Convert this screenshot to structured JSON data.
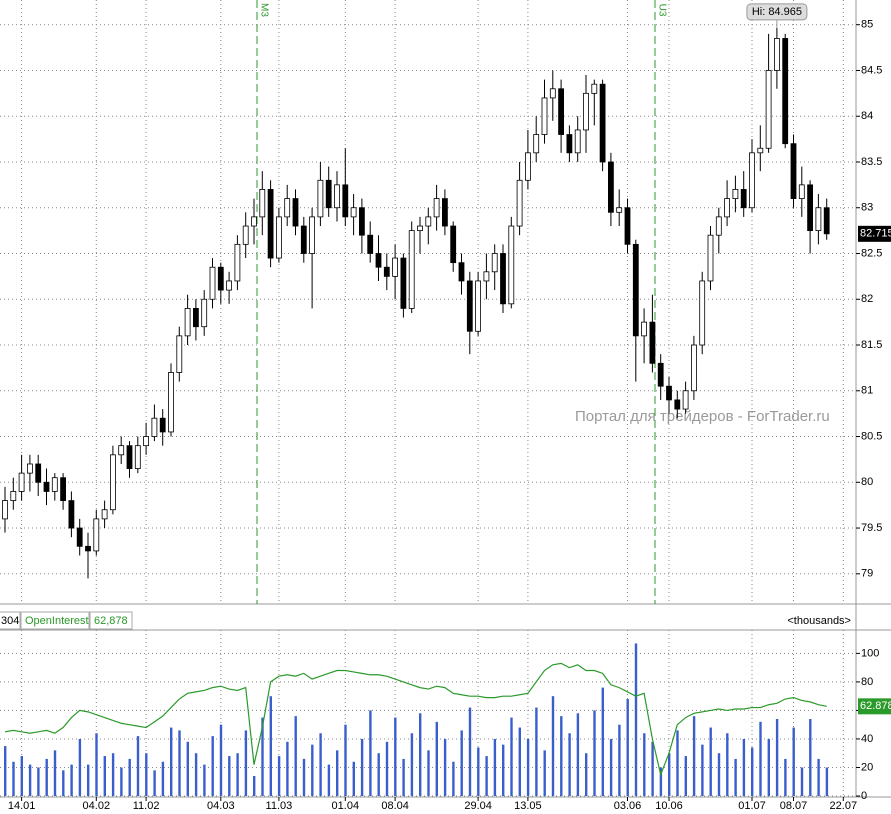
{
  "chart_data": {
    "type": "candlestick",
    "categories": [
      null,
      null,
      "14.01",
      null,
      null,
      null,
      null,
      null,
      null,
      null,
      null,
      "04.02",
      null,
      null,
      null,
      null,
      null,
      "11.02",
      null,
      null,
      null,
      null,
      null,
      null,
      null,
      null,
      "04.03",
      null,
      null,
      null,
      null,
      null,
      null,
      "11.03",
      null,
      null,
      null,
      null,
      null,
      null,
      null,
      "01.04",
      null,
      null,
      null,
      null,
      null,
      "08.04",
      null,
      null,
      null,
      null,
      null,
      null,
      null,
      null,
      null,
      "29.04",
      null,
      null,
      null,
      null,
      null,
      "13.05",
      null,
      null,
      null,
      null,
      null,
      null,
      null,
      null,
      null,
      null,
      null,
      "03.06",
      null,
      null,
      null,
      null,
      "10.06",
      null,
      null,
      null,
      null,
      null,
      null,
      null,
      null,
      null,
      "01.07",
      null,
      null,
      null,
      null,
      "08.07",
      null,
      null,
      null,
      null,
      null,
      "22.07"
    ],
    "candles": [
      [
        79.6,
        79.95,
        79.45,
        79.8
      ],
      [
        79.8,
        80.05,
        79.7,
        79.9
      ],
      [
        79.9,
        80.3,
        79.8,
        80.1
      ],
      [
        80.1,
        80.3,
        79.9,
        80.2
      ],
      [
        80.2,
        80.3,
        79.85,
        80.0
      ],
      [
        80.0,
        80.15,
        79.75,
        79.9
      ],
      [
        79.9,
        80.1,
        79.8,
        80.05
      ],
      [
        80.05,
        80.1,
        79.7,
        79.8
      ],
      [
        79.8,
        79.9,
        79.4,
        79.5
      ],
      [
        79.5,
        79.6,
        79.2,
        79.3
      ],
      [
        79.3,
        79.45,
        78.95,
        79.25
      ],
      [
        79.25,
        79.7,
        79.2,
        79.6
      ],
      [
        79.6,
        79.8,
        79.5,
        79.7
      ],
      [
        79.7,
        80.4,
        79.65,
        80.3
      ],
      [
        80.3,
        80.5,
        80.2,
        80.4
      ],
      [
        80.4,
        80.45,
        80.05,
        80.15
      ],
      [
        80.15,
        80.5,
        80.1,
        80.4
      ],
      [
        80.4,
        80.65,
        80.3,
        80.5
      ],
      [
        80.5,
        80.85,
        80.45,
        80.7
      ],
      [
        80.7,
        80.8,
        80.4,
        80.55
      ],
      [
        80.55,
        81.3,
        80.5,
        81.2
      ],
      [
        81.2,
        81.7,
        81.1,
        81.6
      ],
      [
        81.6,
        82.05,
        81.5,
        81.9
      ],
      [
        81.9,
        82.0,
        81.55,
        81.7
      ],
      [
        81.7,
        82.1,
        81.6,
        82.0
      ],
      [
        82.0,
        82.45,
        81.9,
        82.35
      ],
      [
        82.35,
        82.4,
        81.95,
        82.1
      ],
      [
        82.1,
        82.3,
        81.95,
        82.2
      ],
      [
        82.2,
        82.7,
        82.1,
        82.6
      ],
      [
        82.6,
        82.95,
        82.45,
        82.8
      ],
      [
        82.8,
        83.1,
        82.6,
        82.9
      ],
      [
        82.9,
        83.4,
        82.7,
        83.2
      ],
      [
        83.2,
        83.3,
        82.35,
        82.45
      ],
      [
        82.45,
        83.0,
        82.4,
        82.9
      ],
      [
        82.9,
        83.25,
        82.8,
        83.1
      ],
      [
        83.1,
        83.2,
        82.7,
        82.8
      ],
      [
        82.8,
        82.9,
        82.4,
        82.5
      ],
      [
        82.5,
        83.0,
        81.9,
        82.9
      ],
      [
        82.9,
        83.5,
        82.8,
        83.3
      ],
      [
        83.3,
        83.45,
        82.9,
        83.0
      ],
      [
        83.0,
        83.4,
        82.85,
        83.25
      ],
      [
        83.25,
        83.65,
        82.8,
        82.9
      ],
      [
        82.9,
        83.15,
        82.7,
        83.0
      ],
      [
        83.0,
        83.1,
        82.5,
        82.7
      ],
      [
        82.7,
        82.85,
        82.4,
        82.5
      ],
      [
        82.5,
        82.7,
        82.2,
        82.35
      ],
      [
        82.35,
        82.5,
        82.1,
        82.25
      ],
      [
        82.25,
        82.6,
        82.0,
        82.45
      ],
      [
        82.45,
        82.5,
        81.8,
        81.9
      ],
      [
        81.9,
        82.85,
        81.85,
        82.75
      ],
      [
        82.75,
        82.9,
        82.5,
        82.8
      ],
      [
        82.8,
        83.0,
        82.6,
        82.9
      ],
      [
        82.9,
        83.25,
        82.75,
        83.1
      ],
      [
        83.1,
        83.2,
        82.7,
        82.8
      ],
      [
        82.8,
        82.85,
        82.3,
        82.4
      ],
      [
        82.4,
        82.5,
        82.05,
        82.2
      ],
      [
        82.2,
        82.3,
        81.4,
        81.65
      ],
      [
        81.65,
        82.3,
        81.6,
        82.2
      ],
      [
        82.2,
        82.5,
        82.0,
        82.3
      ],
      [
        82.3,
        82.6,
        82.1,
        82.5
      ],
      [
        82.5,
        82.6,
        81.85,
        81.95
      ],
      [
        81.95,
        82.9,
        81.9,
        82.8
      ],
      [
        82.8,
        83.5,
        82.7,
        83.3
      ],
      [
        83.3,
        83.85,
        83.2,
        83.6
      ],
      [
        83.6,
        84.0,
        83.5,
        83.8
      ],
      [
        83.8,
        84.4,
        83.7,
        84.2
      ],
      [
        84.2,
        84.5,
        83.95,
        84.3
      ],
      [
        84.3,
        84.4,
        83.6,
        83.8
      ],
      [
        83.8,
        83.9,
        83.5,
        83.6
      ],
      [
        83.6,
        84.0,
        83.5,
        83.85
      ],
      [
        83.85,
        84.45,
        83.6,
        84.25
      ],
      [
        84.25,
        84.4,
        83.9,
        84.35
      ],
      [
        84.35,
        84.4,
        83.4,
        83.5
      ],
      [
        83.5,
        83.6,
        82.8,
        82.95
      ],
      [
        82.95,
        83.2,
        82.8,
        83.0
      ],
      [
        83.0,
        83.1,
        82.5,
        82.6
      ],
      [
        82.6,
        82.65,
        81.1,
        81.6
      ],
      [
        81.6,
        81.9,
        81.3,
        81.75
      ],
      [
        81.75,
        82.05,
        81.2,
        81.3
      ],
      [
        81.3,
        81.4,
        80.9,
        81.05
      ],
      [
        81.05,
        81.15,
        80.75,
        80.9
      ],
      [
        80.9,
        81.0,
        80.7,
        80.8
      ],
      [
        80.8,
        81.1,
        80.75,
        81.0
      ],
      [
        81.0,
        81.6,
        80.9,
        81.5
      ],
      [
        81.5,
        82.3,
        81.4,
        82.2
      ],
      [
        82.2,
        82.8,
        82.1,
        82.7
      ],
      [
        82.7,
        83.0,
        82.5,
        82.9
      ],
      [
        82.9,
        83.3,
        82.8,
        83.1
      ],
      [
        83.1,
        83.35,
        82.95,
        83.2
      ],
      [
        83.2,
        83.4,
        82.9,
        83.0
      ],
      [
        83.0,
        83.75,
        82.95,
        83.6
      ],
      [
        83.6,
        83.9,
        83.4,
        83.65
      ],
      [
        83.65,
        84.9,
        83.6,
        84.5
      ],
      [
        84.5,
        84.965,
        84.3,
        84.85
      ],
      [
        84.85,
        84.9,
        83.65,
        83.7
      ],
      [
        83.7,
        83.8,
        83.0,
        83.1
      ],
      [
        83.1,
        83.45,
        82.9,
        83.25
      ],
      [
        83.25,
        83.3,
        82.5,
        82.75
      ],
      [
        82.75,
        83.15,
        82.6,
        83.0
      ],
      [
        83.0,
        83.1,
        82.65,
        82.715
      ],
      null,
      null
    ],
    "ylim": [
      78.67,
      85.27
    ],
    "yticks": [
      79,
      79.5,
      80,
      80.5,
      81,
      81.5,
      82,
      82.5,
      83,
      83.5,
      84,
      84.5,
      85
    ],
    "high_label": "Hi: 84.965",
    "close_label": "82.715",
    "annotations": [
      "M3",
      "U3"
    ],
    "watermark": "Портал для трейдеров - ForTrader.ru",
    "grid": true,
    "lower_panel": {
      "header": [
        "304",
        "OpenInterest",
        "62,878",
        "<thousands>"
      ],
      "ylim": [
        0,
        115
      ],
      "yticks": [
        0,
        20,
        40,
        60,
        80,
        100
      ],
      "volume_color": "#3a5fcd",
      "oi_color": "#2a9a2a",
      "volume": [
        35,
        24,
        28,
        22,
        20,
        26,
        32,
        18,
        22,
        40,
        22,
        44,
        28,
        30,
        20,
        26,
        42,
        30,
        18,
        24,
        48,
        46,
        38,
        30,
        22,
        42,
        50,
        28,
        30,
        46,
        14,
        55,
        70,
        28,
        38,
        56,
        26,
        36,
        44,
        22,
        32,
        50,
        24,
        40,
        60,
        30,
        38,
        55,
        26,
        44,
        58,
        32,
        52,
        40,
        24,
        46,
        62,
        34,
        28,
        40,
        36,
        55,
        48,
        40,
        62,
        32,
        70,
        56,
        44,
        58,
        30,
        60,
        76,
        40,
        50,
        68,
        107,
        44,
        38,
        20,
        30,
        46,
        28,
        56,
        36,
        48,
        30,
        44,
        26,
        40,
        34,
        52,
        40,
        54,
        26,
        48,
        20,
        54,
        26,
        20,
        null,
        null
      ],
      "open_interest": [
        45,
        46,
        45,
        44,
        45,
        46,
        44,
        48,
        55,
        60,
        59,
        57,
        55,
        53,
        51,
        50,
        49,
        48,
        52,
        56,
        62,
        68,
        72,
        73,
        74,
        76,
        77,
        75,
        74,
        76,
        22,
        48,
        80,
        84,
        85,
        84,
        86,
        82,
        84,
        86,
        88,
        88,
        87,
        86,
        85,
        85,
        84,
        82,
        80,
        78,
        76,
        75,
        77,
        76,
        72,
        71,
        70,
        70,
        69,
        69,
        70,
        70,
        71,
        72,
        80,
        88,
        92,
        93,
        90,
        92,
        88,
        88,
        86,
        78,
        76,
        73,
        70,
        72,
        40,
        15,
        30,
        50,
        55,
        58,
        59,
        60,
        61,
        60,
        61,
        61,
        62,
        62,
        64,
        65,
        68,
        69,
        67,
        66,
        64,
        62.878,
        null,
        null
      ],
      "oi_last_label": "62.878"
    }
  }
}
